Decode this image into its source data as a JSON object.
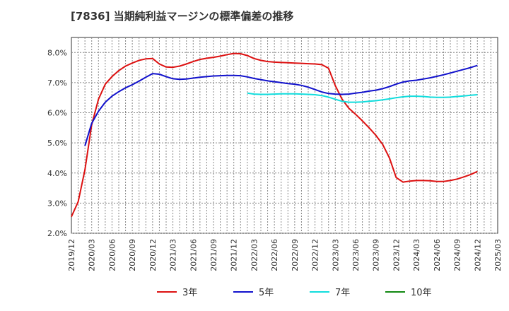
{
  "chart_data": {
    "type": "line",
    "title": "[7836]  当期純利益マージンの標準偏差の推移",
    "ylim": [
      2.0,
      8.5
    ],
    "y_ticks": [
      "2.0%",
      "3.0%",
      "4.0%",
      "5.0%",
      "6.0%",
      "7.0%",
      "8.0%"
    ],
    "x_ticks": [
      "2019/12",
      "2020/03",
      "2020/06",
      "2020/09",
      "2020/12",
      "2021/03",
      "2021/06",
      "2021/09",
      "2021/12",
      "2022/03",
      "2022/06",
      "2022/09",
      "2022/12",
      "2023/03",
      "2023/06",
      "2023/09",
      "2023/12",
      "2024/03",
      "2024/06",
      "2024/09",
      "2024/12",
      "2025/03"
    ],
    "grid": true,
    "legend_position": "bottom",
    "series": [
      {
        "name": "3年",
        "color": "#dd1111",
        "points": [
          [
            "2019/12",
            2.55
          ],
          [
            "2020/01",
            3.05
          ],
          [
            "2020/02",
            4.1
          ],
          [
            "2020/03",
            5.6
          ],
          [
            "2020/04",
            6.45
          ],
          [
            "2020/05",
            6.95
          ],
          [
            "2020/06",
            7.2
          ],
          [
            "2020/07",
            7.4
          ],
          [
            "2020/08",
            7.55
          ],
          [
            "2020/09",
            7.65
          ],
          [
            "2020/10",
            7.74
          ],
          [
            "2020/11",
            7.79
          ],
          [
            "2020/12",
            7.8
          ],
          [
            "2021/01",
            7.62
          ],
          [
            "2021/02",
            7.52
          ],
          [
            "2021/03",
            7.51
          ],
          [
            "2021/04",
            7.55
          ],
          [
            "2021/05",
            7.62
          ],
          [
            "2021/06",
            7.7
          ],
          [
            "2021/07",
            7.77
          ],
          [
            "2021/08",
            7.81
          ],
          [
            "2021/09",
            7.84
          ],
          [
            "2021/10",
            7.88
          ],
          [
            "2021/11",
            7.93
          ],
          [
            "2021/12",
            7.97
          ],
          [
            "2022/01",
            7.96
          ],
          [
            "2022/02",
            7.9
          ],
          [
            "2022/03",
            7.8
          ],
          [
            "2022/04",
            7.74
          ],
          [
            "2022/05",
            7.7
          ],
          [
            "2022/06",
            7.68
          ],
          [
            "2022/07",
            7.67
          ],
          [
            "2022/08",
            7.66
          ],
          [
            "2022/09",
            7.65
          ],
          [
            "2022/10",
            7.64
          ],
          [
            "2022/11",
            7.63
          ],
          [
            "2022/12",
            7.62
          ],
          [
            "2023/01",
            7.6
          ],
          [
            "2023/02",
            7.48
          ],
          [
            "2023/03",
            6.9
          ],
          [
            "2023/04",
            6.45
          ],
          [
            "2023/05",
            6.15
          ],
          [
            "2023/06",
            5.95
          ],
          [
            "2023/07",
            5.73
          ],
          [
            "2023/08",
            5.5
          ],
          [
            "2023/09",
            5.25
          ],
          [
            "2023/10",
            4.95
          ],
          [
            "2023/11",
            4.5
          ],
          [
            "2023/12",
            3.85
          ],
          [
            "2024/01",
            3.7
          ],
          [
            "2024/02",
            3.73
          ],
          [
            "2024/03",
            3.75
          ],
          [
            "2024/04",
            3.75
          ],
          [
            "2024/05",
            3.74
          ],
          [
            "2024/06",
            3.72
          ],
          [
            "2024/07",
            3.72
          ],
          [
            "2024/08",
            3.75
          ],
          [
            "2024/09",
            3.8
          ],
          [
            "2024/10",
            3.87
          ],
          [
            "2024/11",
            3.95
          ],
          [
            "2024/12",
            4.05
          ]
        ]
      },
      {
        "name": "5年",
        "color": "#1111cc",
        "points": [
          [
            "2020/02",
            4.9
          ],
          [
            "2020/03",
            5.65
          ],
          [
            "2020/04",
            6.05
          ],
          [
            "2020/05",
            6.35
          ],
          [
            "2020/06",
            6.55
          ],
          [
            "2020/07",
            6.7
          ],
          [
            "2020/08",
            6.83
          ],
          [
            "2020/09",
            6.93
          ],
          [
            "2020/10",
            7.05
          ],
          [
            "2020/11",
            7.18
          ],
          [
            "2020/12",
            7.3
          ],
          [
            "2021/01",
            7.28
          ],
          [
            "2021/02",
            7.2
          ],
          [
            "2021/03",
            7.13
          ],
          [
            "2021/04",
            7.11
          ],
          [
            "2021/05",
            7.12
          ],
          [
            "2021/06",
            7.15
          ],
          [
            "2021/07",
            7.18
          ],
          [
            "2021/08",
            7.2
          ],
          [
            "2021/09",
            7.22
          ],
          [
            "2021/10",
            7.23
          ],
          [
            "2021/11",
            7.24
          ],
          [
            "2021/12",
            7.24
          ],
          [
            "2022/01",
            7.23
          ],
          [
            "2022/02",
            7.19
          ],
          [
            "2022/03",
            7.14
          ],
          [
            "2022/04",
            7.1
          ],
          [
            "2022/05",
            7.06
          ],
          [
            "2022/06",
            7.03
          ],
          [
            "2022/07",
            7.0
          ],
          [
            "2022/08",
            6.97
          ],
          [
            "2022/09",
            6.95
          ],
          [
            "2022/10",
            6.91
          ],
          [
            "2022/11",
            6.85
          ],
          [
            "2022/12",
            6.77
          ],
          [
            "2023/01",
            6.69
          ],
          [
            "2023/02",
            6.64
          ],
          [
            "2023/03",
            6.62
          ],
          [
            "2023/04",
            6.61
          ],
          [
            "2023/05",
            6.62
          ],
          [
            "2023/06",
            6.65
          ],
          [
            "2023/07",
            6.68
          ],
          [
            "2023/08",
            6.72
          ],
          [
            "2023/09",
            6.75
          ],
          [
            "2023/10",
            6.8
          ],
          [
            "2023/11",
            6.87
          ],
          [
            "2023/12",
            6.95
          ],
          [
            "2024/01",
            7.02
          ],
          [
            "2024/02",
            7.06
          ],
          [
            "2024/03",
            7.08
          ],
          [
            "2024/04",
            7.12
          ],
          [
            "2024/05",
            7.16
          ],
          [
            "2024/06",
            7.21
          ],
          [
            "2024/07",
            7.26
          ],
          [
            "2024/08",
            7.32
          ],
          [
            "2024/09",
            7.38
          ],
          [
            "2024/10",
            7.44
          ],
          [
            "2024/11",
            7.5
          ],
          [
            "2024/12",
            7.57
          ]
        ]
      },
      {
        "name": "7年",
        "color": "#11dddd",
        "points": [
          [
            "2022/02",
            6.65
          ],
          [
            "2022/03",
            6.62
          ],
          [
            "2022/04",
            6.61
          ],
          [
            "2022/05",
            6.61
          ],
          [
            "2022/06",
            6.62
          ],
          [
            "2022/07",
            6.63
          ],
          [
            "2022/08",
            6.63
          ],
          [
            "2022/09",
            6.63
          ],
          [
            "2022/10",
            6.62
          ],
          [
            "2022/11",
            6.61
          ],
          [
            "2022/12",
            6.6
          ],
          [
            "2023/01",
            6.57
          ],
          [
            "2023/02",
            6.52
          ],
          [
            "2023/03",
            6.45
          ],
          [
            "2023/04",
            6.38
          ],
          [
            "2023/05",
            6.35
          ],
          [
            "2023/06",
            6.35
          ],
          [
            "2023/07",
            6.36
          ],
          [
            "2023/08",
            6.38
          ],
          [
            "2023/09",
            6.4
          ],
          [
            "2023/10",
            6.43
          ],
          [
            "2023/11",
            6.46
          ],
          [
            "2023/12",
            6.5
          ],
          [
            "2024/01",
            6.53
          ],
          [
            "2024/02",
            6.55
          ],
          [
            "2024/03",
            6.55
          ],
          [
            "2024/04",
            6.54
          ],
          [
            "2024/05",
            6.52
          ],
          [
            "2024/06",
            6.51
          ],
          [
            "2024/07",
            6.51
          ],
          [
            "2024/08",
            6.52
          ],
          [
            "2024/09",
            6.54
          ],
          [
            "2024/10",
            6.56
          ],
          [
            "2024/11",
            6.58
          ],
          [
            "2024/12",
            6.6
          ]
        ]
      },
      {
        "name": "10年",
        "color": "#118811",
        "points": []
      }
    ]
  }
}
